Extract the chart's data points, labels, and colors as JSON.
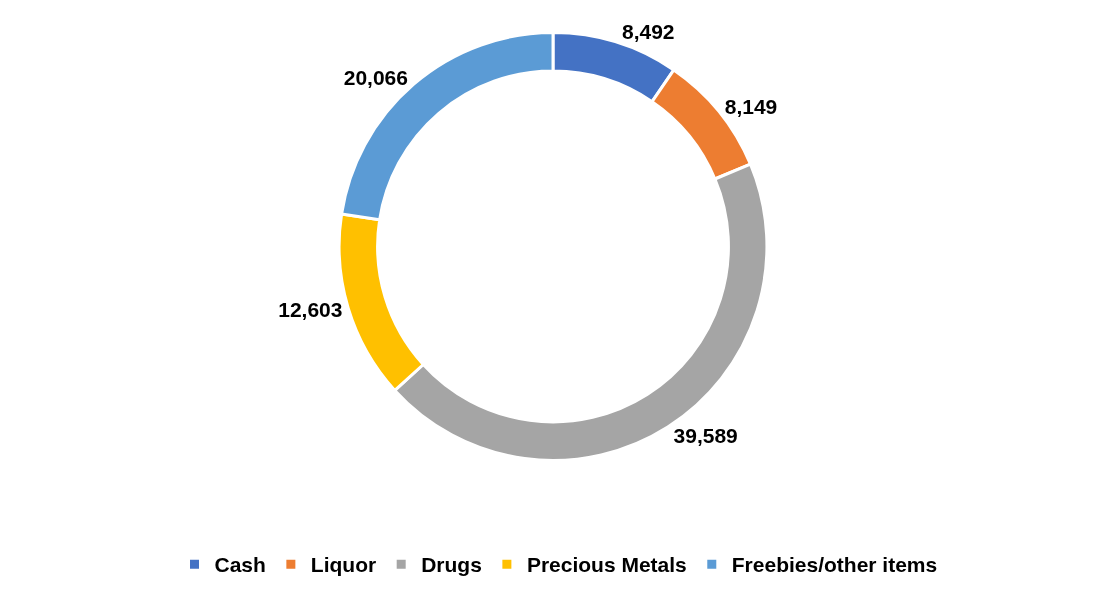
{
  "chart_data": {
    "type": "donut",
    "categories": [
      "Cash",
      "Liquor",
      "Drugs",
      "Precious Metals",
      "Freebies/other items"
    ],
    "values": [
      8492,
      8149,
      39589,
      12603,
      20066
    ],
    "colors": [
      "#4472c4",
      "#ed7d31",
      "#a5a5a5",
      "#ffc000",
      "#5b9bd5"
    ],
    "value_labels": [
      "8,492",
      "8,149",
      "39,589",
      "12,603",
      "20,066"
    ],
    "legend": "bottom"
  }
}
